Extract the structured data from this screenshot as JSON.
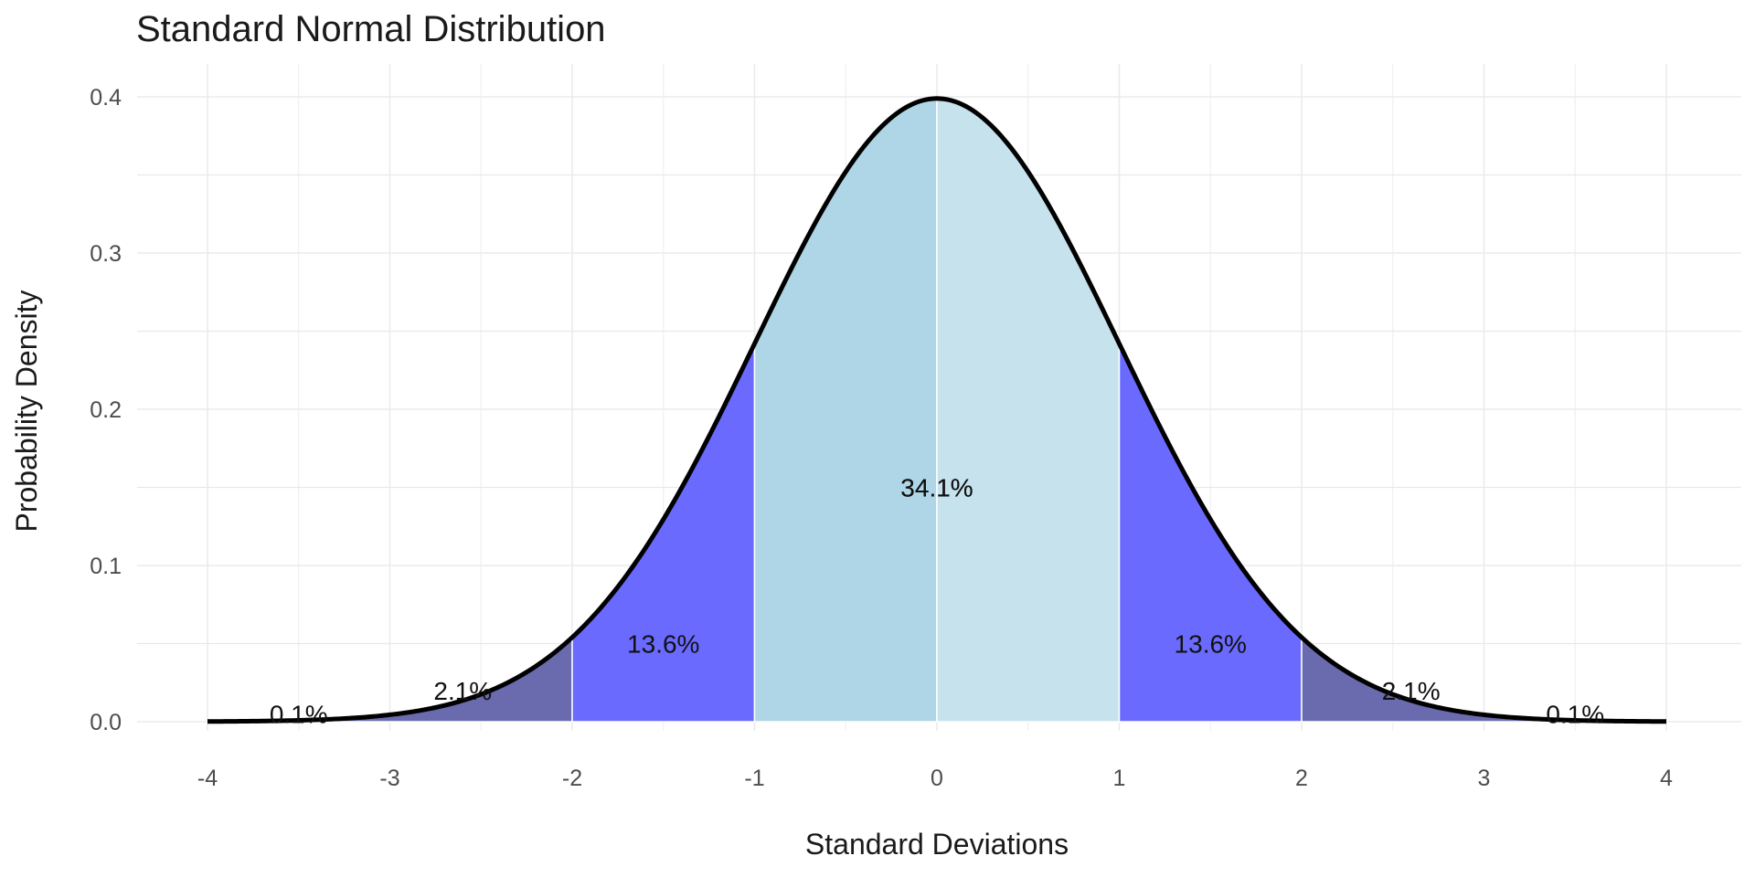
{
  "chart_data": {
    "type": "area",
    "title": "Standard Normal Distribution",
    "xlabel": "Standard Deviations",
    "ylabel": "Probability Density",
    "xlim": [
      -4,
      4
    ],
    "ylim": [
      0,
      0.4
    ],
    "grid": true,
    "x_ticks": [
      -4,
      -3,
      -2,
      -1,
      0,
      1,
      2,
      3,
      4
    ],
    "x_tick_labels": [
      "-4",
      "-3",
      "-2",
      "-1",
      "0",
      "1",
      "2",
      "3",
      "4"
    ],
    "y_ticks": [
      0.0,
      0.1,
      0.2,
      0.3,
      0.4
    ],
    "y_tick_labels": [
      "0.0",
      "0.1",
      "0.2",
      "0.3",
      "0.4"
    ],
    "curve": {
      "name": "",
      "mean": 0,
      "sd": 1,
      "color": "#000000"
    },
    "regions": [
      {
        "from": -4,
        "to": -2,
        "label": "2.1%",
        "label_x": -2.6,
        "label_y": 0.02,
        "color": "#6a6aae"
      },
      {
        "from": -2,
        "to": -1,
        "label": "13.6%",
        "label_x": -1.5,
        "label_y": 0.05,
        "color": "#6a6aff"
      },
      {
        "from": -1,
        "to": 0,
        "label": "34.1%",
        "label_x": 0,
        "label_y": 0.15,
        "color": "#aed6e6"
      },
      {
        "from": 0,
        "to": 1,
        "label": "34.1%",
        "label_x": 0,
        "label_y": 0.15,
        "color": "#c5e2ed"
      },
      {
        "from": 1,
        "to": 2,
        "label": "13.6%",
        "label_x": 1.5,
        "label_y": 0.05,
        "color": "#6a6aff"
      },
      {
        "from": 2,
        "to": 4,
        "label": "2.1%",
        "label_x": 2.6,
        "label_y": 0.02,
        "color": "#6a6aae"
      }
    ],
    "extra_labels": [
      {
        "text": "0.1%",
        "x": -3.5,
        "y": 0.005
      },
      {
        "text": "0.1%",
        "x": 3.5,
        "y": 0.005
      }
    ]
  }
}
